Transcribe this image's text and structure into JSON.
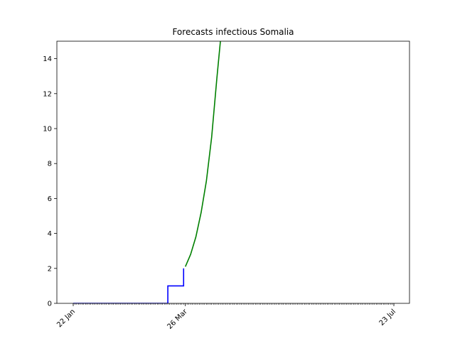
{
  "chart_data": {
    "type": "line",
    "title": "Forecasts infectious Somalia",
    "xlabel": "",
    "ylabel": "",
    "x_start": "2020-01-22",
    "x_end": "2020-07-23",
    "xlim": [
      "2020-01-22",
      "2020-07-23"
    ],
    "ylim": [
      0,
      15
    ],
    "x_tick_labels": [
      {
        "date": "2020-01-22",
        "label": "22 Jan"
      },
      {
        "date": "2020-03-26",
        "label": "26 Mar"
      },
      {
        "date": "2020-07-23",
        "label": "23 Jul"
      }
    ],
    "y_ticks": [
      0,
      2,
      4,
      6,
      8,
      10,
      12,
      14
    ],
    "minor_x_ticks": "daily",
    "grid": false,
    "legend": "none",
    "series": [
      {
        "color": "#0000ff",
        "points": [
          {
            "x": "2020-01-22",
            "y": 0
          },
          {
            "x": "2020-03-16",
            "y": 0
          },
          {
            "x": "2020-03-16",
            "y": 1
          },
          {
            "x": "2020-03-25",
            "y": 1
          },
          {
            "x": "2020-03-25",
            "y": 2
          }
        ]
      },
      {
        "color": "#008000",
        "points": [
          {
            "x": "2020-03-26",
            "y": 2.1
          },
          {
            "x": "2020-03-29",
            "y": 2.8
          },
          {
            "x": "2020-04-01",
            "y": 3.8
          },
          {
            "x": "2020-04-04",
            "y": 5.2
          },
          {
            "x": "2020-04-07",
            "y": 7.0
          },
          {
            "x": "2020-04-10",
            "y": 9.5
          },
          {
            "x": "2020-04-13",
            "y": 12.9
          },
          {
            "x": "2020-04-15",
            "y": 15.0
          }
        ]
      }
    ]
  }
}
